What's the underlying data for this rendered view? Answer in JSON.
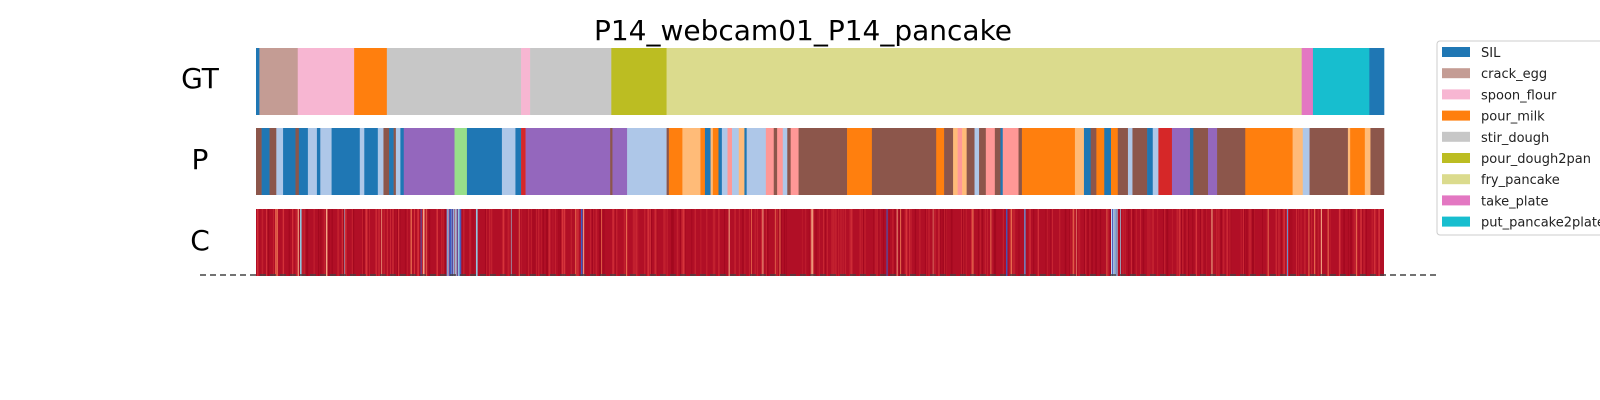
{
  "chart_data": {
    "type": "segmentation-timeline",
    "title": "P14_webcam01_P14_pancake",
    "rows": [
      "GT",
      "P",
      "C"
    ],
    "frames": 1000,
    "legend": [
      {
        "label": "SIL",
        "color": "#1f77b4"
      },
      {
        "label": "crack_egg",
        "color": "#c49c94"
      },
      {
        "label": "spoon_flour",
        "color": "#f7b6d2"
      },
      {
        "label": "pour_milk",
        "color": "#ff7f0e"
      },
      {
        "label": "stir_dough",
        "color": "#c7c7c7"
      },
      {
        "label": "pour_dough2pan",
        "color": "#bcbd22"
      },
      {
        "label": "fry_pancake",
        "color": "#dbdb8d"
      },
      {
        "label": "take_plate",
        "color": "#e377c2"
      },
      {
        "label": "put_pancake2plate",
        "color": "#17becf"
      }
    ],
    "extra_colors": {
      "brown": "#8c564b",
      "purple": "#9467bd",
      "light_blue": "#aec7e8",
      "light_green": "#98df8a",
      "light_orange": "#ffbb78",
      "salmon": "#ff9896",
      "red": "#d62728"
    },
    "gt_segments": [
      {
        "start": 0,
        "end": 3,
        "color": "#1f77b4"
      },
      {
        "start": 3,
        "end": 37,
        "color": "#c49c94"
      },
      {
        "start": 37,
        "end": 87,
        "color": "#f7b6d2"
      },
      {
        "start": 87,
        "end": 116,
        "color": "#ff7f0e"
      },
      {
        "start": 116,
        "end": 235,
        "color": "#c7c7c7"
      },
      {
        "start": 235,
        "end": 243,
        "color": "#f7b6d2"
      },
      {
        "start": 243,
        "end": 315,
        "color": "#c7c7c7"
      },
      {
        "start": 315,
        "end": 364,
        "color": "#bcbd22"
      },
      {
        "start": 364,
        "end": 927,
        "color": "#dbdb8d"
      },
      {
        "start": 927,
        "end": 937,
        "color": "#e377c2"
      },
      {
        "start": 937,
        "end": 987,
        "color": "#17becf"
      },
      {
        "start": 987,
        "end": 1000,
        "color": "#1f77b4"
      }
    ],
    "p_segments": [
      {
        "start": 0,
        "end": 5,
        "color": "#8c564b"
      },
      {
        "start": 5,
        "end": 12,
        "color": "#1f77b4"
      },
      {
        "start": 12,
        "end": 18,
        "color": "#8c564b"
      },
      {
        "start": 18,
        "end": 24,
        "color": "#aec7e8"
      },
      {
        "start": 24,
        "end": 35,
        "color": "#1f77b4"
      },
      {
        "start": 35,
        "end": 38,
        "color": "#8c564b"
      },
      {
        "start": 38,
        "end": 46,
        "color": "#1f77b4"
      },
      {
        "start": 46,
        "end": 54,
        "color": "#aec7e8"
      },
      {
        "start": 54,
        "end": 57,
        "color": "#1f77b4"
      },
      {
        "start": 57,
        "end": 67,
        "color": "#aec7e8"
      },
      {
        "start": 67,
        "end": 92,
        "color": "#1f77b4"
      },
      {
        "start": 92,
        "end": 96,
        "color": "#aec7e8"
      },
      {
        "start": 96,
        "end": 108,
        "color": "#1f77b4"
      },
      {
        "start": 108,
        "end": 113,
        "color": "#aec7e8"
      },
      {
        "start": 113,
        "end": 118,
        "color": "#8c564b"
      },
      {
        "start": 118,
        "end": 122,
        "color": "#1f77b4"
      },
      {
        "start": 122,
        "end": 124,
        "color": "#8c564b"
      },
      {
        "start": 124,
        "end": 128,
        "color": "#aec7e8"
      },
      {
        "start": 128,
        "end": 131,
        "color": "#1f77b4"
      },
      {
        "start": 131,
        "end": 176,
        "color": "#9467bd"
      },
      {
        "start": 176,
        "end": 187,
        "color": "#98df8a"
      },
      {
        "start": 187,
        "end": 218,
        "color": "#1f77b4"
      },
      {
        "start": 218,
        "end": 230,
        "color": "#aec7e8"
      },
      {
        "start": 230,
        "end": 235,
        "color": "#1f77b4"
      },
      {
        "start": 235,
        "end": 239,
        "color": "#d62728"
      },
      {
        "start": 239,
        "end": 314,
        "color": "#9467bd"
      },
      {
        "start": 314,
        "end": 316,
        "color": "#8c564b"
      },
      {
        "start": 316,
        "end": 329,
        "color": "#9467bd"
      },
      {
        "start": 329,
        "end": 334,
        "color": "#aec7e8"
      },
      {
        "start": 334,
        "end": 364,
        "color": "#aec7e8"
      },
      {
        "start": 364,
        "end": 366,
        "color": "#8c564b"
      },
      {
        "start": 366,
        "end": 378,
        "color": "#ff7f0e"
      },
      {
        "start": 378,
        "end": 394,
        "color": "#ffbb78"
      },
      {
        "start": 394,
        "end": 398,
        "color": "#ff7f0e"
      },
      {
        "start": 398,
        "end": 403,
        "color": "#1f77b4"
      },
      {
        "start": 403,
        "end": 405,
        "color": "#ffbb78"
      },
      {
        "start": 405,
        "end": 410,
        "color": "#ff7f0e"
      },
      {
        "start": 410,
        "end": 413,
        "color": "#1f77b4"
      },
      {
        "start": 413,
        "end": 418,
        "color": "#aec7e8"
      },
      {
        "start": 418,
        "end": 422,
        "color": "#ff9896"
      },
      {
        "start": 422,
        "end": 428,
        "color": "#aec7e8"
      },
      {
        "start": 428,
        "end": 433,
        "color": "#ffbb78"
      },
      {
        "start": 433,
        "end": 435,
        "color": "#1f77b4"
      },
      {
        "start": 435,
        "end": 452,
        "color": "#aec7e8"
      },
      {
        "start": 452,
        "end": 459,
        "color": "#ff9896"
      },
      {
        "start": 459,
        "end": 462,
        "color": "#8c564b"
      },
      {
        "start": 462,
        "end": 467,
        "color": "#ff9896"
      },
      {
        "start": 467,
        "end": 471,
        "color": "#aec7e8"
      },
      {
        "start": 471,
        "end": 474,
        "color": "#8c564b"
      },
      {
        "start": 474,
        "end": 481,
        "color": "#ff9896"
      },
      {
        "start": 481,
        "end": 524,
        "color": "#8c564b"
      },
      {
        "start": 524,
        "end": 530,
        "color": "#ff7f0e"
      },
      {
        "start": 530,
        "end": 546,
        "color": "#ff7f0e"
      },
      {
        "start": 546,
        "end": 603,
        "color": "#8c564b"
      },
      {
        "start": 603,
        "end": 610,
        "color": "#ff7f0e"
      },
      {
        "start": 610,
        "end": 618,
        "color": "#8c564b"
      },
      {
        "start": 618,
        "end": 622,
        "color": "#ffbb78"
      },
      {
        "start": 622,
        "end": 626,
        "color": "#ff9896"
      },
      {
        "start": 626,
        "end": 630,
        "color": "#ffbb78"
      },
      {
        "start": 630,
        "end": 637,
        "color": "#8c564b"
      },
      {
        "start": 637,
        "end": 641,
        "color": "#aec7e8"
      },
      {
        "start": 641,
        "end": 647,
        "color": "#8c564b"
      },
      {
        "start": 647,
        "end": 655,
        "color": "#ff9896"
      },
      {
        "start": 655,
        "end": 660,
        "color": "#8c564b"
      },
      {
        "start": 660,
        "end": 662,
        "color": "#1f77b4"
      },
      {
        "start": 662,
        "end": 676,
        "color": "#ff9896"
      },
      {
        "start": 676,
        "end": 679,
        "color": "#8c564b"
      },
      {
        "start": 679,
        "end": 726,
        "color": "#ff7f0e"
      },
      {
        "start": 726,
        "end": 734,
        "color": "#ffbb78"
      },
      {
        "start": 734,
        "end": 740,
        "color": "#1f77b4"
      },
      {
        "start": 740,
        "end": 745,
        "color": "#8c564b"
      },
      {
        "start": 745,
        "end": 752,
        "color": "#ff7f0e"
      },
      {
        "start": 752,
        "end": 758,
        "color": "#1f77b4"
      },
      {
        "start": 758,
        "end": 764,
        "color": "#ff7f0e"
      },
      {
        "start": 764,
        "end": 773,
        "color": "#8c564b"
      },
      {
        "start": 773,
        "end": 777,
        "color": "#aec7e8"
      },
      {
        "start": 777,
        "end": 790,
        "color": "#8c564b"
      },
      {
        "start": 790,
        "end": 795,
        "color": "#1f77b4"
      },
      {
        "start": 795,
        "end": 800,
        "color": "#aec7e8"
      },
      {
        "start": 800,
        "end": 812,
        "color": "#d62728"
      },
      {
        "start": 812,
        "end": 828,
        "color": "#9467bd"
      },
      {
        "start": 828,
        "end": 831,
        "color": "#1f77b4"
      },
      {
        "start": 831,
        "end": 844,
        "color": "#8c564b"
      },
      {
        "start": 844,
        "end": 852,
        "color": "#9467bd"
      },
      {
        "start": 852,
        "end": 877,
        "color": "#8c564b"
      },
      {
        "start": 877,
        "end": 919,
        "color": "#ff7f0e"
      },
      {
        "start": 919,
        "end": 928,
        "color": "#ffbb78"
      },
      {
        "start": 928,
        "end": 934,
        "color": "#aec7e8"
      },
      {
        "start": 934,
        "end": 968,
        "color": "#8c564b"
      },
      {
        "start": 968,
        "end": 970,
        "color": "#ffbb78"
      },
      {
        "start": 970,
        "end": 983,
        "color": "#ff7f0e"
      },
      {
        "start": 983,
        "end": 988,
        "color": "#ffbb78"
      },
      {
        "start": 988,
        "end": 991,
        "color": "#8c564b"
      },
      {
        "start": 991,
        "end": 1000,
        "color": "#8c564b"
      }
    ],
    "c_colors": {
      "base": "#b10f26",
      "variants": [
        "#c2202f",
        "#a3081f",
        "#d6343b",
        "#e86a4e",
        "#f4a582",
        "#c6dbef",
        "#92c5de",
        "#6a8fd1",
        "#3b5cc6"
      ]
    },
    "c_light_regions": [
      {
        "start": 169,
        "end": 182
      },
      {
        "start": 758,
        "end": 764
      }
    ]
  }
}
